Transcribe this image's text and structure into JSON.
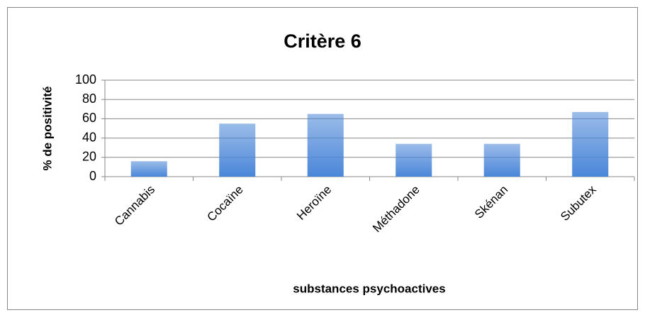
{
  "chart_data": {
    "type": "bar",
    "title": "Critère 6",
    "xlabel": "substances psychoactives",
    "ylabel": "% de positivité",
    "categories": [
      "Cannabis",
      "Cocaïne",
      "Heroïne",
      "Méthadone",
      "Skénan",
      "Subutex"
    ],
    "values": [
      16,
      55,
      65,
      34,
      34,
      67
    ],
    "color": "#4a86d8",
    "ylim": [
      0,
      100
    ],
    "yticks": [
      0,
      20,
      40,
      60,
      80,
      100
    ],
    "grid": true
  }
}
